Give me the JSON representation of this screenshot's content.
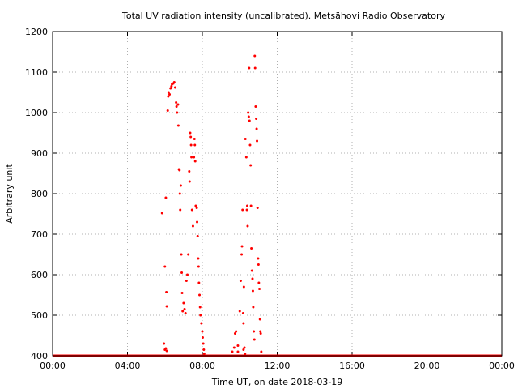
{
  "chart_data": {
    "type": "scatter",
    "title": "Total UV radiation intensity (uncalibrated). Metsähovi Radio Observatory",
    "xlabel": "Time UT, on date 2018-03-19",
    "ylabel": "Arbitrary unit",
    "x_unit": "hours UT",
    "xlim": [
      0,
      24
    ],
    "ylim": [
      400,
      1200
    ],
    "x_tick_values": [
      0,
      4,
      8,
      12,
      16,
      20,
      24
    ],
    "x_tick_labels": [
      "00:00",
      "04:00",
      "08:00",
      "12:00",
      "16:00",
      "20:00",
      "00:00"
    ],
    "y_tick_values": [
      400,
      500,
      600,
      700,
      800,
      900,
      1000,
      1100,
      1200
    ],
    "y_tick_labels": [
      "400",
      "500",
      "600",
      "700",
      "800",
      "900",
      "1000",
      "1100",
      "1200"
    ],
    "grid": true,
    "marker_color": "#ff0000",
    "baseline": {
      "value": 400,
      "from_x": 0,
      "to_x": 24
    },
    "points": [
      [
        5.85,
        752
      ],
      [
        6.0,
        620
      ],
      [
        6.05,
        790
      ],
      [
        6.08,
        557
      ],
      [
        6.1,
        522
      ],
      [
        6.15,
        1005
      ],
      [
        6.18,
        1040
      ],
      [
        6.2,
        1050
      ],
      [
        6.25,
        1045
      ],
      [
        6.3,
        1060
      ],
      [
        6.35,
        1065
      ],
      [
        6.38,
        1070
      ],
      [
        6.45,
        1072
      ],
      [
        6.5,
        1075
      ],
      [
        6.55,
        1062
      ],
      [
        6.6,
        1025
      ],
      [
        6.62,
        1015
      ],
      [
        6.65,
        1000
      ],
      [
        6.7,
        1020
      ],
      [
        6.72,
        968
      ],
      [
        6.75,
        860
      ],
      [
        6.78,
        858
      ],
      [
        6.8,
        800
      ],
      [
        6.82,
        760
      ],
      [
        6.85,
        820
      ],
      [
        6.88,
        650
      ],
      [
        6.9,
        605
      ],
      [
        6.92,
        555
      ],
      [
        6.95,
        510
      ],
      [
        7.0,
        530
      ],
      [
        7.05,
        515
      ],
      [
        7.1,
        505
      ],
      [
        7.15,
        585
      ],
      [
        7.2,
        600
      ],
      [
        7.25,
        650
      ],
      [
        7.3,
        855
      ],
      [
        7.32,
        830
      ],
      [
        7.35,
        950
      ],
      [
        7.38,
        940
      ],
      [
        7.4,
        920
      ],
      [
        7.42,
        890
      ],
      [
        7.45,
        760
      ],
      [
        7.5,
        720
      ],
      [
        7.55,
        890
      ],
      [
        7.58,
        935
      ],
      [
        7.6,
        920
      ],
      [
        7.62,
        880
      ],
      [
        7.65,
        770
      ],
      [
        7.7,
        765
      ],
      [
        7.72,
        730
      ],
      [
        7.75,
        695
      ],
      [
        7.78,
        640
      ],
      [
        7.8,
        620
      ],
      [
        7.82,
        580
      ],
      [
        7.85,
        550
      ],
      [
        7.88,
        520
      ],
      [
        7.9,
        500
      ],
      [
        7.95,
        480
      ],
      [
        8.0,
        460
      ],
      [
        8.02,
        445
      ],
      [
        8.05,
        430
      ],
      [
        8.08,
        415
      ],
      [
        8.1,
        405
      ],
      [
        9.6,
        410
      ],
      [
        9.7,
        420
      ],
      [
        9.75,
        455
      ],
      [
        9.8,
        460
      ],
      [
        9.9,
        410
      ],
      [
        10.0,
        510
      ],
      [
        10.05,
        585
      ],
      [
        10.1,
        650
      ],
      [
        10.12,
        670
      ],
      [
        10.15,
        760
      ],
      [
        10.18,
        505
      ],
      [
        10.2,
        480
      ],
      [
        10.22,
        570
      ],
      [
        10.25,
        420
      ],
      [
        10.28,
        405
      ],
      [
        10.3,
        935
      ],
      [
        10.35,
        890
      ],
      [
        10.38,
        760
      ],
      [
        10.4,
        770
      ],
      [
        10.42,
        720
      ],
      [
        10.45,
        1000
      ],
      [
        10.48,
        990
      ],
      [
        10.5,
        1110
      ],
      [
        10.52,
        980
      ],
      [
        10.55,
        920
      ],
      [
        10.58,
        870
      ],
      [
        10.6,
        770
      ],
      [
        10.62,
        665
      ],
      [
        10.65,
        610
      ],
      [
        10.68,
        590
      ],
      [
        10.7,
        560
      ],
      [
        10.72,
        520
      ],
      [
        10.75,
        460
      ],
      [
        10.78,
        440
      ],
      [
        10.8,
        1140
      ],
      [
        10.82,
        1110
      ],
      [
        10.85,
        1015
      ],
      [
        10.88,
        985
      ],
      [
        10.9,
        960
      ],
      [
        10.92,
        930
      ],
      [
        10.95,
        765
      ],
      [
        10.98,
        640
      ],
      [
        11.0,
        625
      ],
      [
        11.02,
        580
      ],
      [
        11.05,
        565
      ],
      [
        11.08,
        490
      ],
      [
        11.1,
        460
      ],
      [
        11.12,
        455
      ],
      [
        11.15,
        410
      ],
      [
        5.95,
        430
      ],
      [
        6.0,
        415
      ],
      [
        6.05,
        418
      ],
      [
        6.1,
        412
      ],
      [
        9.9,
        425
      ],
      [
        10.2,
        415
      ]
    ]
  }
}
